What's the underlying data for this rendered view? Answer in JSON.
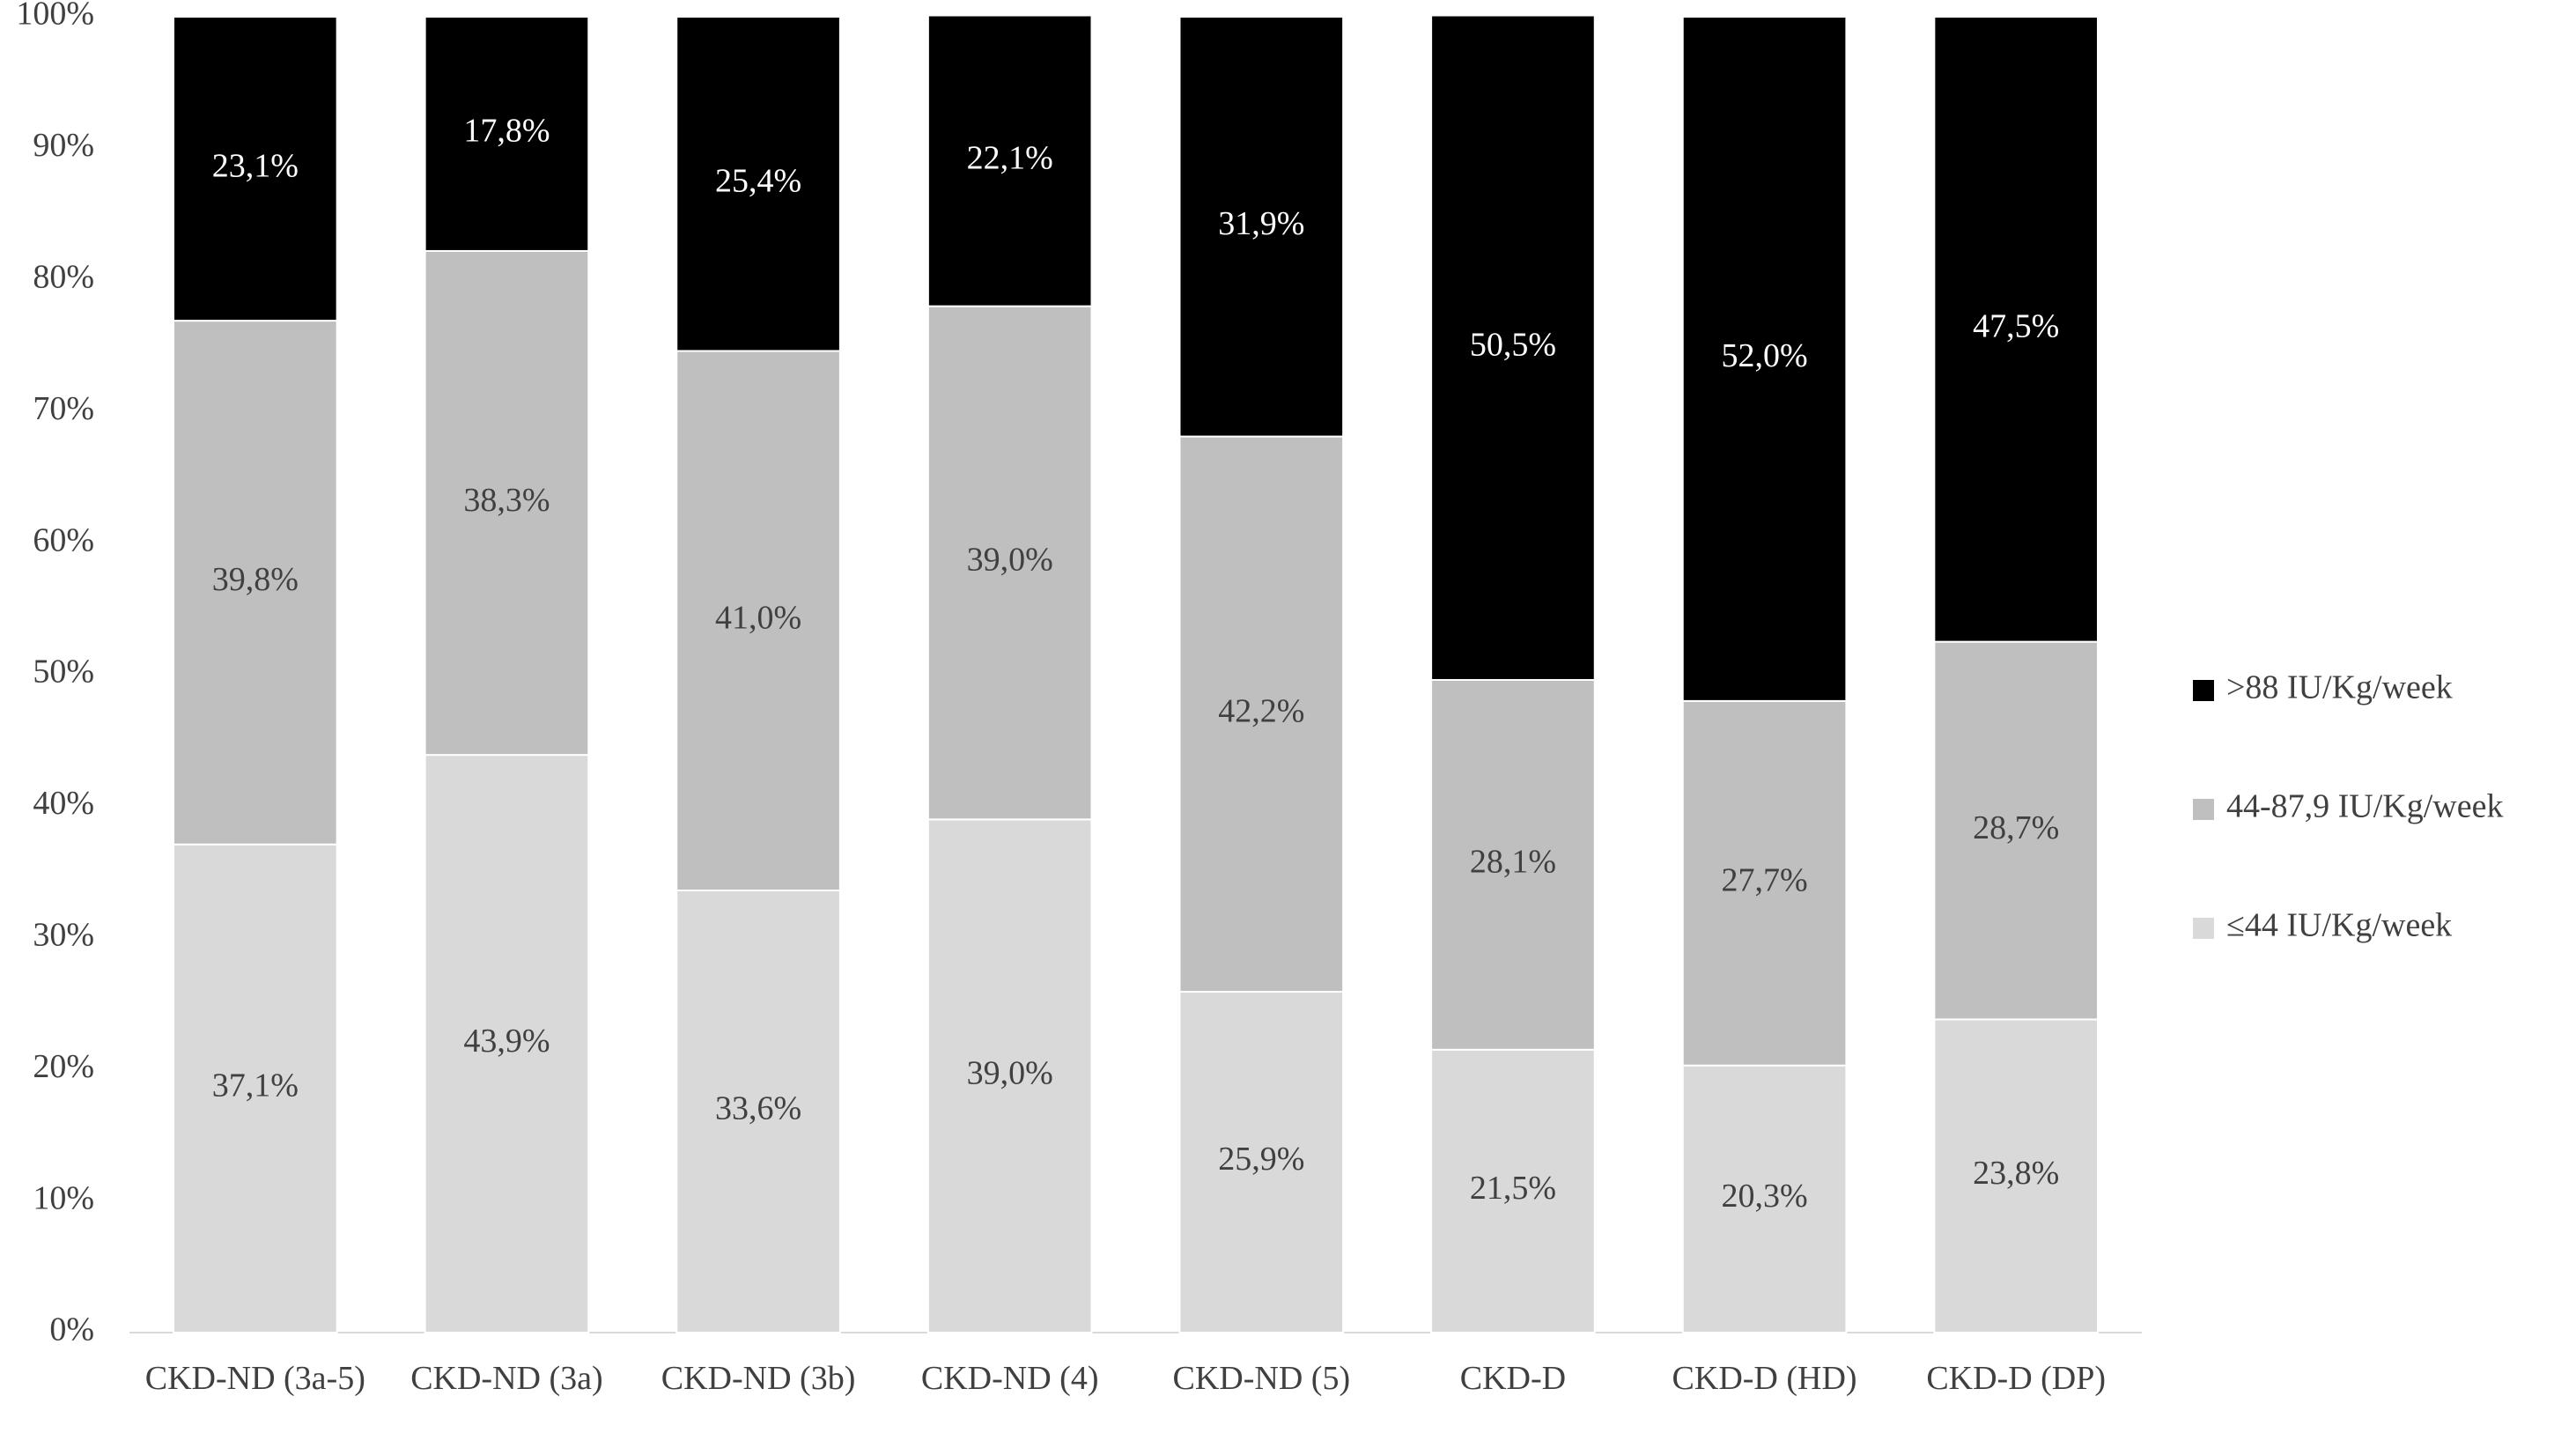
{
  "chart_data": {
    "type": "stacked-bar",
    "categories": [
      "CKD-ND (3a-5)",
      "CKD-ND (3a)",
      "CKD-ND (3b)",
      "CKD-ND (4)",
      "CKD-ND (5)",
      "CKD-D",
      "CKD-D (HD)",
      "CKD-D (DP)"
    ],
    "series": [
      {
        "name": "≤44 IU/Kg/week",
        "color": "#d9d9d9",
        "values": [
          37.1,
          43.9,
          33.6,
          39.0,
          25.9,
          21.5,
          20.3,
          23.8
        ],
        "value_labels": [
          "37,1%",
          "43,9%",
          "33,6%",
          "39,0%",
          "25,9%",
          "21,5%",
          "20,3%",
          "23,8%"
        ]
      },
      {
        "name": "44-87,9 IU/Kg/week",
        "color": "#bfbfbf",
        "values": [
          39.8,
          38.3,
          41.0,
          39.0,
          42.2,
          28.1,
          27.7,
          28.7
        ],
        "value_labels": [
          "39,8%",
          "38,3%",
          "41,0%",
          "39,0%",
          "42,2%",
          "28,1%",
          "27,7%",
          "28,7%"
        ]
      },
      {
        "name": ">88 IU/Kg/week",
        "color": "#000000",
        "values": [
          23.1,
          17.8,
          25.4,
          22.1,
          31.9,
          50.5,
          52.0,
          47.5
        ],
        "value_labels": [
          "23,1%",
          "17,8%",
          "25,4%",
          "22,1%",
          "31,9%",
          "50,5%",
          "52,0%",
          "47,5%"
        ]
      }
    ],
    "ylim": [
      0,
      100
    ],
    "yticks": [
      {
        "value": 0,
        "label": "0%"
      },
      {
        "value": 10,
        "label": "10%"
      },
      {
        "value": 20,
        "label": "20%"
      },
      {
        "value": 30,
        "label": "30%"
      },
      {
        "value": 40,
        "label": "40%"
      },
      {
        "value": 50,
        "label": "50%"
      },
      {
        "value": 60,
        "label": "60%"
      },
      {
        "value": 70,
        "label": "70%"
      },
      {
        "value": 80,
        "label": "80%"
      },
      {
        "value": 90,
        "label": "90%"
      },
      {
        "value": 100,
        "label": "100%"
      }
    ],
    "grid": false,
    "legend": "right"
  }
}
